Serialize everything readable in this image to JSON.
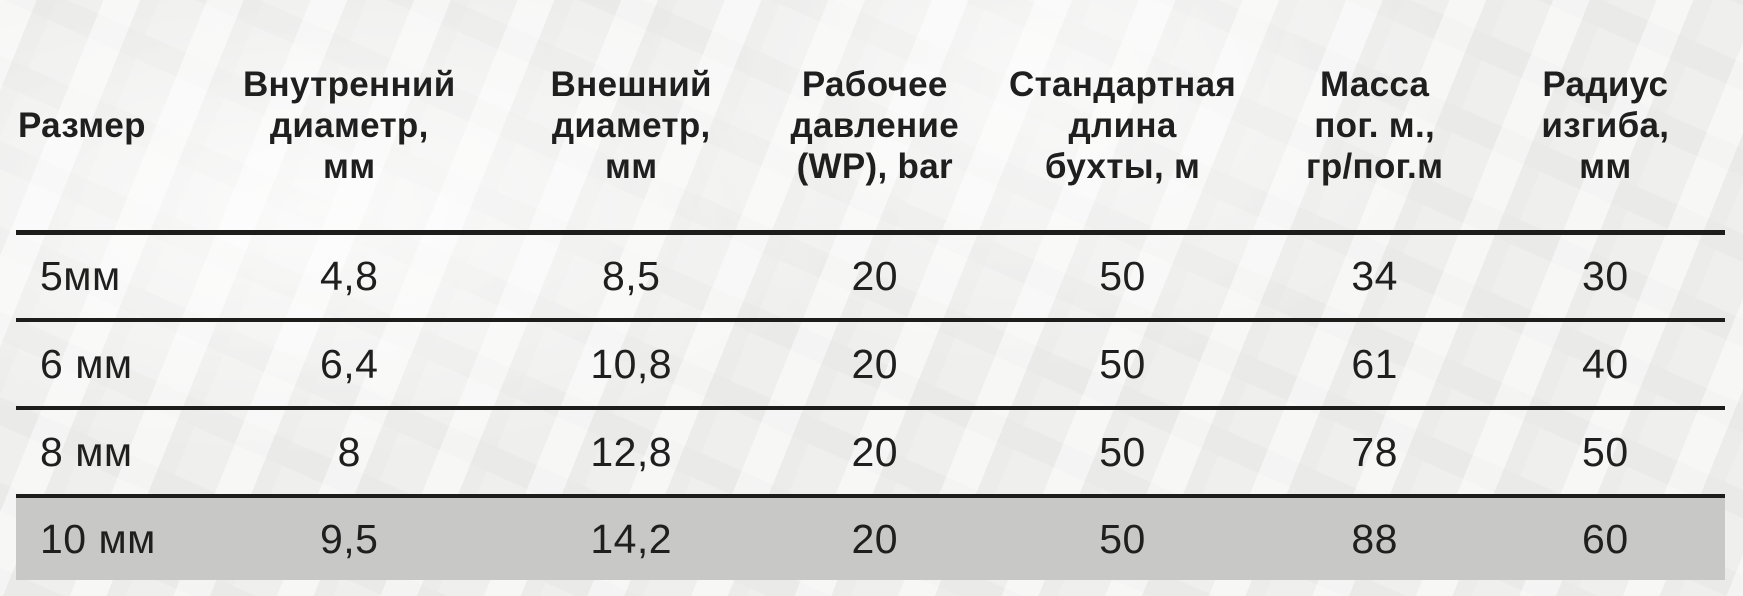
{
  "colors": {
    "background": "#efefee",
    "text": "#1f1f1f",
    "rule": "#1d1d1b",
    "highlight_row": "#c8c8c7"
  },
  "table": {
    "columns": [
      {
        "id": "size",
        "label": "Размер"
      },
      {
        "id": "inner-diameter",
        "label": "Внутренний\nдиаметр,\nмм"
      },
      {
        "id": "outer-diameter",
        "label": "Внешний\nдиаметр,\nмм"
      },
      {
        "id": "working-pressure",
        "label": "Рабочее\nдавление\n(WP), bar"
      },
      {
        "id": "coil-length",
        "label": "Стандартная\nдлина\nбухты, м"
      },
      {
        "id": "mass-per-meter",
        "label": "Масса\nпог. м.,\nгр/пог.м"
      },
      {
        "id": "bend-radius",
        "label": "Радиус\nизгиба,\nмм"
      }
    ],
    "rows": [
      {
        "highlighted": false,
        "cells": [
          "5мм",
          "4,8",
          "8,5",
          "20",
          "50",
          "34",
          "30"
        ]
      },
      {
        "highlighted": false,
        "cells": [
          "6 мм",
          "6,4",
          "10,8",
          "20",
          "50",
          "61",
          "40"
        ]
      },
      {
        "highlighted": false,
        "cells": [
          "8 мм",
          "8",
          "12,8",
          "20",
          "50",
          "78",
          "50"
        ]
      },
      {
        "highlighted": true,
        "cells": [
          "10 мм",
          "9,5",
          "14,2",
          "20",
          "50",
          "88",
          "60"
        ]
      }
    ]
  }
}
